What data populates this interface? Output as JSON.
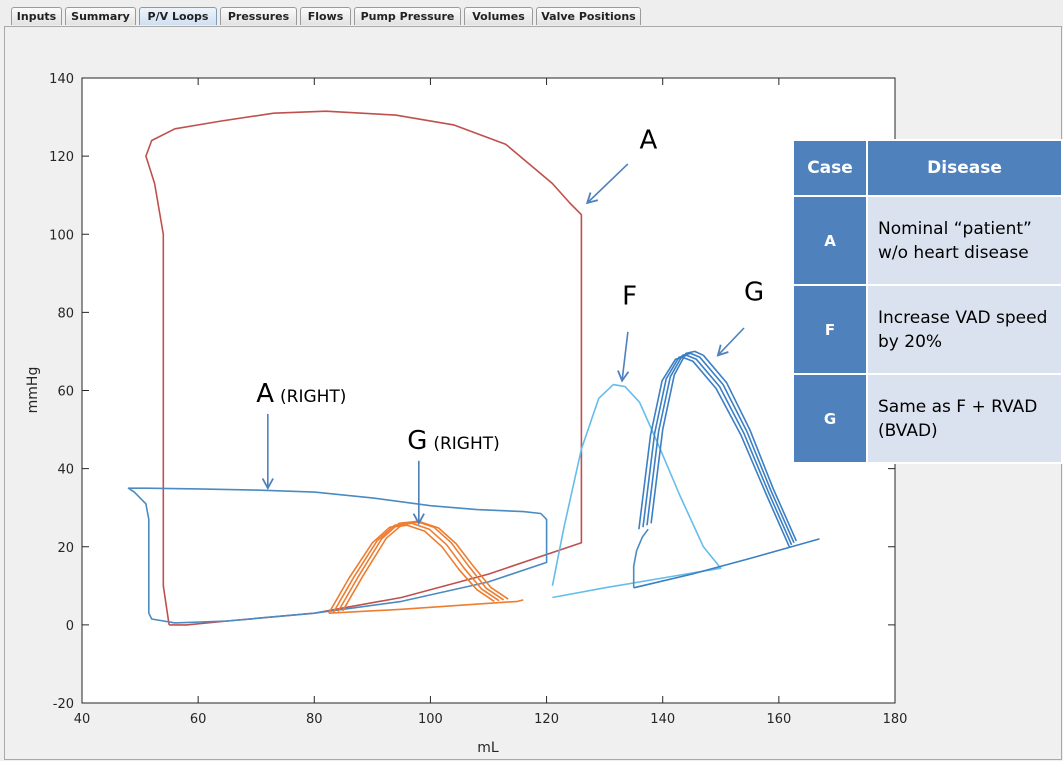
{
  "tabs": [
    {
      "label": "Inputs",
      "active": false
    },
    {
      "label": "Summary",
      "active": false
    },
    {
      "label": "P/V Loops",
      "active": true
    },
    {
      "label": "Pressures",
      "active": false
    },
    {
      "label": "Flows",
      "active": false
    },
    {
      "label": "Pump Pressure",
      "active": false
    },
    {
      "label": "Volumes",
      "active": false
    },
    {
      "label": "Valve Positions",
      "active": false
    }
  ],
  "chart_data": {
    "type": "line",
    "title": "",
    "xlabel": "mL",
    "ylabel": "mmHg",
    "xlim": [
      40,
      180
    ],
    "ylim": [
      -20,
      140
    ],
    "xticks": [
      40,
      60,
      80,
      100,
      120,
      140,
      160,
      180
    ],
    "yticks": [
      -20,
      0,
      20,
      40,
      60,
      80,
      100,
      120,
      140
    ],
    "grid": false,
    "series": [
      {
        "color": "#c0504d",
        "x": [
          55,
          54,
          54,
          52.5,
          51,
          52,
          56,
          64,
          73,
          82,
          94,
          104,
          113,
          121,
          124,
          126,
          126,
          126,
          110,
          95,
          80,
          65,
          58,
          55
        ],
        "y": [
          0,
          10,
          100,
          113,
          120,
          124,
          127,
          129,
          131,
          131.5,
          130.5,
          128,
          123,
          113,
          108,
          105,
          60,
          21,
          13,
          7,
          3,
          1,
          0,
          0
        ]
      },
      {
        "color": "#4a8bc2",
        "x": [
          51.5,
          51.5,
          51,
          49,
          48,
          51,
          60,
          70,
          80,
          90,
          100,
          108,
          116,
          119,
          120,
          120,
          120,
          110,
          95,
          80,
          65,
          56,
          52,
          51.5
        ],
        "y": [
          3,
          27,
          31,
          34,
          35,
          35,
          34.8,
          34.5,
          34,
          32.5,
          30.5,
          29.5,
          29,
          28.5,
          27,
          20,
          16,
          11,
          6,
          3,
          1,
          0.5,
          1.5,
          3
        ]
      },
      {
        "color": "#64bdea",
        "x": [
          121,
          123,
          126,
          129,
          131.5,
          133.5,
          136,
          139,
          143,
          147,
          150,
          140,
          130,
          121
        ],
        "y": [
          10,
          25,
          45,
          58,
          61.5,
          61,
          57,
          47,
          33,
          20,
          14.5,
          12,
          9.5,
          7
        ]
      },
      {
        "color": "#3b7fc4",
        "x": [
          138,
          140,
          142,
          144,
          145.5,
          147,
          151,
          155,
          159,
          163
        ],
        "y": [
          26,
          50,
          64,
          69.5,
          70,
          69,
          62,
          50,
          35,
          21.5
        ]
      },
      {
        "color": "#3b7fc4",
        "x": [
          137.3,
          139.3,
          141.3,
          143.4,
          144.8,
          146.4,
          150.4,
          154.5,
          158.6,
          162.6
        ],
        "y": [
          25.5,
          49.5,
          63.5,
          69,
          69.5,
          68.5,
          61.5,
          49.5,
          34.5,
          21
        ]
      },
      {
        "color": "#3b7fc4",
        "x": [
          136.6,
          138.6,
          140.6,
          142.8,
          144.1,
          145.8,
          149.8,
          154,
          158.2,
          162.2
        ],
        "y": [
          25,
          49,
          63,
          68.5,
          69,
          68,
          61,
          49,
          34,
          20.5
        ]
      },
      {
        "color": "#3b7fc4",
        "x": [
          135.9,
          137.9,
          139.9,
          142.2,
          143.4,
          145.2,
          149.2,
          153.5,
          157.8,
          161.8
        ],
        "y": [
          24.5,
          48.5,
          62.5,
          68,
          68.5,
          67.5,
          60.5,
          48.5,
          33.5,
          20
        ]
      },
      {
        "color": "#3b7fc4",
        "x": [
          135,
          145,
          155,
          167
        ],
        "y": [
          9.5,
          13,
          17,
          22
        ]
      },
      {
        "color": "#4a8bc2",
        "x": [
          135,
          135,
          135.5,
          136.5,
          137.5
        ],
        "y": [
          9.5,
          15,
          19,
          22.5,
          24.5
        ]
      },
      {
        "color": "#ed7d31",
        "x": [
          82.5,
          86,
          90,
          93,
          96,
          99,
          102,
          105,
          108,
          111
        ],
        "y": [
          3,
          12,
          21,
          25,
          25.5,
          24,
          20,
          14,
          9,
          6
        ]
      },
      {
        "color": "#ed7d31",
        "x": [
          83.3,
          86.8,
          90.8,
          93.8,
          96.8,
          99.8,
          102.8,
          105.8,
          108.8,
          111.8
        ],
        "y": [
          3.2,
          12.2,
          21.5,
          25.5,
          26,
          24.5,
          20.5,
          14.5,
          9.2,
          6.2
        ]
      },
      {
        "color": "#ed7d31",
        "x": [
          84.1,
          87.6,
          91.6,
          94.6,
          97.6,
          100.6,
          103.6,
          106.6,
          109.6,
          112.6
        ],
        "y": [
          3.4,
          12.4,
          22,
          26,
          26.5,
          25,
          21,
          15,
          9.4,
          6.4
        ]
      },
      {
        "color": "#ed7d31",
        "x": [
          84.9,
          88.4,
          92.4,
          95.4,
          98.4,
          101.4,
          104.4,
          107.4,
          110.4,
          113.4
        ],
        "y": [
          3.6,
          12.6,
          22.2,
          26,
          26.3,
          24.8,
          20.8,
          15,
          9.6,
          6.6
        ]
      },
      {
        "color": "#ed7d31",
        "x": [
          82.5,
          95,
          105,
          115,
          116
        ],
        "y": [
          3,
          4,
          5,
          6,
          6.4
        ]
      }
    ],
    "annotations": [
      {
        "text": "A",
        "small": "",
        "x": 136,
        "y": 122,
        "arrow": [
          [
            134,
            118
          ],
          [
            127,
            108
          ]
        ]
      },
      {
        "text": "F",
        "small": "",
        "x": 133,
        "y": 82,
        "arrow": [
          [
            134,
            75
          ],
          [
            133,
            62.5
          ]
        ]
      },
      {
        "text": "G",
        "small": "",
        "x": 154,
        "y": 83,
        "arrow": [
          [
            154,
            76
          ],
          [
            149.5,
            69
          ]
        ]
      },
      {
        "text": "A",
        "small": "(RIGHT)",
        "x": 70,
        "y": 57,
        "arrow": [
          [
            72,
            54
          ],
          [
            72,
            35
          ]
        ]
      },
      {
        "text": "G",
        "small": "(RIGHT)",
        "x": 96,
        "y": 45,
        "arrow": [
          [
            98,
            42
          ],
          [
            98,
            26
          ]
        ]
      }
    ]
  },
  "legend_table": {
    "headers": [
      "Case",
      "Disease"
    ],
    "rows": [
      {
        "case": "A",
        "line1": "Nominal “patient”",
        "line2": "w/o heart disease"
      },
      {
        "case": "F",
        "line1": "Increase VAD speed",
        "line2": "by 20%"
      },
      {
        "case": "G",
        "line1": "Same as F + RVAD",
        "line2": "(BVAD)"
      }
    ]
  }
}
